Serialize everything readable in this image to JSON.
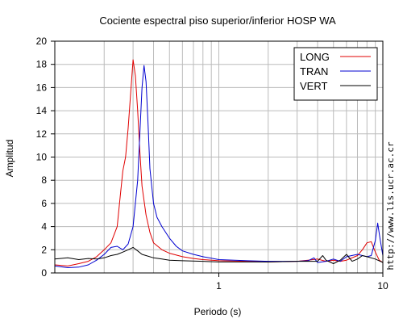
{
  "chart_data": {
    "type": "line",
    "title": "Cociente espectral piso superior/inferior  HOSP WA",
    "xlabel": "Periodo (s)",
    "ylabel": "Amplitud",
    "x_scale": "log",
    "xlim": [
      0.1,
      10
    ],
    "ylim": [
      0,
      20
    ],
    "x_tick_labels": [
      {
        "value": 1,
        "label": "1"
      },
      {
        "value": 10,
        "label": "10"
      }
    ],
    "y_ticks": [
      0,
      2,
      4,
      6,
      8,
      10,
      12,
      14,
      16,
      18,
      20
    ],
    "grid": true,
    "legend_position": "top-right",
    "side_note": "http://www.lis.ucr.ac.cr",
    "series": [
      {
        "name": "LONG",
        "color": "#e00000",
        "points": [
          [
            0.1,
            0.7
          ],
          [
            0.12,
            0.6
          ],
          [
            0.14,
            0.8
          ],
          [
            0.16,
            1.0
          ],
          [
            0.18,
            1.4
          ],
          [
            0.2,
            2.0
          ],
          [
            0.22,
            2.6
          ],
          [
            0.24,
            4.0
          ],
          [
            0.25,
            6.5
          ],
          [
            0.26,
            8.8
          ],
          [
            0.27,
            10.0
          ],
          [
            0.28,
            12.5
          ],
          [
            0.29,
            15.5
          ],
          [
            0.3,
            18.4
          ],
          [
            0.31,
            17.0
          ],
          [
            0.32,
            14.0
          ],
          [
            0.33,
            10.5
          ],
          [
            0.34,
            7.5
          ],
          [
            0.36,
            5.0
          ],
          [
            0.38,
            3.5
          ],
          [
            0.4,
            2.6
          ],
          [
            0.45,
            2.0
          ],
          [
            0.5,
            1.7
          ],
          [
            0.6,
            1.4
          ],
          [
            0.7,
            1.25
          ],
          [
            0.8,
            1.15
          ],
          [
            1.0,
            1.05
          ],
          [
            1.5,
            1.0
          ],
          [
            2.0,
            0.95
          ],
          [
            3.0,
            1.0
          ],
          [
            3.5,
            1.1
          ],
          [
            4.0,
            1.2
          ],
          [
            4.5,
            1.0
          ],
          [
            5.0,
            1.1
          ],
          [
            5.5,
            1.0
          ],
          [
            6.0,
            1.1
          ],
          [
            7.0,
            1.5
          ],
          [
            7.5,
            2.0
          ],
          [
            8.0,
            2.6
          ],
          [
            8.5,
            2.7
          ],
          [
            9.0,
            1.8
          ],
          [
            9.5,
            1.1
          ],
          [
            10.0,
            0.9
          ]
        ]
      },
      {
        "name": "TRAN",
        "color": "#0000d0",
        "points": [
          [
            0.1,
            0.6
          ],
          [
            0.12,
            0.45
          ],
          [
            0.14,
            0.5
          ],
          [
            0.16,
            0.7
          ],
          [
            0.18,
            1.1
          ],
          [
            0.2,
            1.6
          ],
          [
            0.22,
            2.2
          ],
          [
            0.24,
            2.3
          ],
          [
            0.26,
            2.0
          ],
          [
            0.28,
            2.5
          ],
          [
            0.3,
            4.0
          ],
          [
            0.32,
            8.0
          ],
          [
            0.33,
            12.0
          ],
          [
            0.34,
            16.0
          ],
          [
            0.35,
            17.9
          ],
          [
            0.36,
            16.5
          ],
          [
            0.37,
            13.0
          ],
          [
            0.38,
            9.0
          ],
          [
            0.4,
            6.0
          ],
          [
            0.42,
            4.8
          ],
          [
            0.45,
            4.0
          ],
          [
            0.5,
            3.0
          ],
          [
            0.55,
            2.3
          ],
          [
            0.6,
            1.9
          ],
          [
            0.7,
            1.6
          ],
          [
            0.8,
            1.4
          ],
          [
            1.0,
            1.15
          ],
          [
            1.5,
            1.05
          ],
          [
            2.0,
            1.0
          ],
          [
            3.0,
            1.0
          ],
          [
            3.5,
            1.05
          ],
          [
            3.8,
            1.3
          ],
          [
            4.0,
            0.9
          ],
          [
            4.5,
            1.0
          ],
          [
            5.0,
            1.2
          ],
          [
            5.5,
            1.0
          ],
          [
            6.0,
            1.4
          ],
          [
            7.0,
            1.6
          ],
          [
            8.0,
            1.4
          ],
          [
            8.5,
            1.5
          ],
          [
            9.0,
            2.8
          ],
          [
            9.3,
            4.3
          ],
          [
            9.6,
            3.0
          ],
          [
            10.0,
            1.5
          ]
        ]
      },
      {
        "name": "VERT",
        "color": "#000000",
        "points": [
          [
            0.1,
            1.2
          ],
          [
            0.12,
            1.3
          ],
          [
            0.14,
            1.15
          ],
          [
            0.16,
            1.25
          ],
          [
            0.18,
            1.2
          ],
          [
            0.2,
            1.3
          ],
          [
            0.22,
            1.5
          ],
          [
            0.24,
            1.6
          ],
          [
            0.26,
            1.8
          ],
          [
            0.28,
            2.0
          ],
          [
            0.3,
            2.2
          ],
          [
            0.32,
            1.9
          ],
          [
            0.34,
            1.6
          ],
          [
            0.36,
            1.5
          ],
          [
            0.4,
            1.3
          ],
          [
            0.45,
            1.2
          ],
          [
            0.5,
            1.1
          ],
          [
            0.6,
            1.05
          ],
          [
            0.8,
            1.0
          ],
          [
            1.0,
            0.95
          ],
          [
            1.5,
            0.95
          ],
          [
            2.0,
            0.95
          ],
          [
            3.0,
            1.0
          ],
          [
            3.5,
            1.0
          ],
          [
            4.0,
            1.0
          ],
          [
            4.3,
            1.5
          ],
          [
            4.5,
            1.1
          ],
          [
            5.0,
            0.8
          ],
          [
            5.5,
            1.1
          ],
          [
            6.0,
            1.6
          ],
          [
            6.5,
            1.0
          ],
          [
            7.0,
            1.2
          ],
          [
            7.5,
            1.5
          ],
          [
            8.0,
            1.4
          ],
          [
            9.0,
            1.2
          ],
          [
            10.0,
            0.9
          ]
        ]
      }
    ]
  }
}
